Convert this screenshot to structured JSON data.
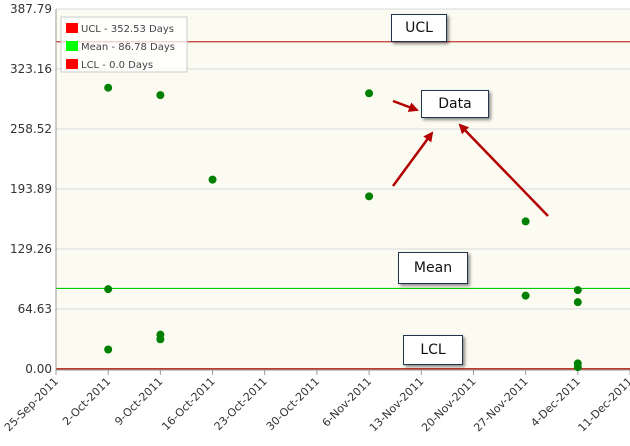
{
  "chart_data": {
    "type": "scatter",
    "xlabel": "",
    "ylabel": "",
    "ylim": [
      0.0,
      387.79
    ],
    "xlim": [
      "2011-09-25",
      "2011-12-11"
    ],
    "y_ticks": [
      "0.00",
      "64.63",
      "129.26",
      "193.89",
      "258.52",
      "323.16",
      "387.79"
    ],
    "x_ticks": [
      "25-Sep-2011",
      "2-Oct-2011",
      "9-Oct-2011",
      "16-Oct-2011",
      "23-Oct-2011",
      "30-Oct-2011",
      "6-Nov-2011",
      "13-Nov-2011",
      "20-Nov-2011",
      "27-Nov-2011",
      "4-Dec-2011",
      "11-Dec-2011"
    ],
    "grid": true,
    "legend_position": "top-left",
    "control_lines": [
      {
        "label": "UCL - 352.53 Days",
        "value": 352.53,
        "color": "#c0392b",
        "legend_swatch": "#ff0000"
      },
      {
        "label": "Mean - 86.78 Days",
        "value": 86.78,
        "color": "#00cc00",
        "legend_swatch": "#00ff00"
      },
      {
        "label": "LCL - 0.0 Days",
        "value": 0.0,
        "color": "#c0392b",
        "legend_swatch": "#ff0000"
      }
    ],
    "series": [
      {
        "color": "#008000",
        "points": [
          {
            "x": "2011-10-02",
            "y": 303
          },
          {
            "x": "2011-10-02",
            "y": 86
          },
          {
            "x": "2011-10-02",
            "y": 21
          },
          {
            "x": "2011-10-09",
            "y": 295
          },
          {
            "x": "2011-10-09",
            "y": 37
          },
          {
            "x": "2011-10-09",
            "y": 32
          },
          {
            "x": "2011-10-16",
            "y": 204
          },
          {
            "x": "2011-11-06",
            "y": 297
          },
          {
            "x": "2011-11-06",
            "y": 186
          },
          {
            "x": "2011-11-27",
            "y": 159
          },
          {
            "x": "2011-11-27",
            "y": 79
          },
          {
            "x": "2011-12-04",
            "y": 85
          },
          {
            "x": "2011-12-04",
            "y": 72
          },
          {
            "x": "2011-12-04",
            "y": 6
          },
          {
            "x": "2011-12-04",
            "y": 2
          }
        ]
      }
    ],
    "annotations": {
      "ucl": "UCL",
      "data": "Data",
      "mean": "Mean",
      "lcl": "LCL"
    }
  },
  "colors": {
    "plot_background": "#fcfbf2",
    "grid": "#d9d9d9",
    "arrow": "#b30000"
  }
}
